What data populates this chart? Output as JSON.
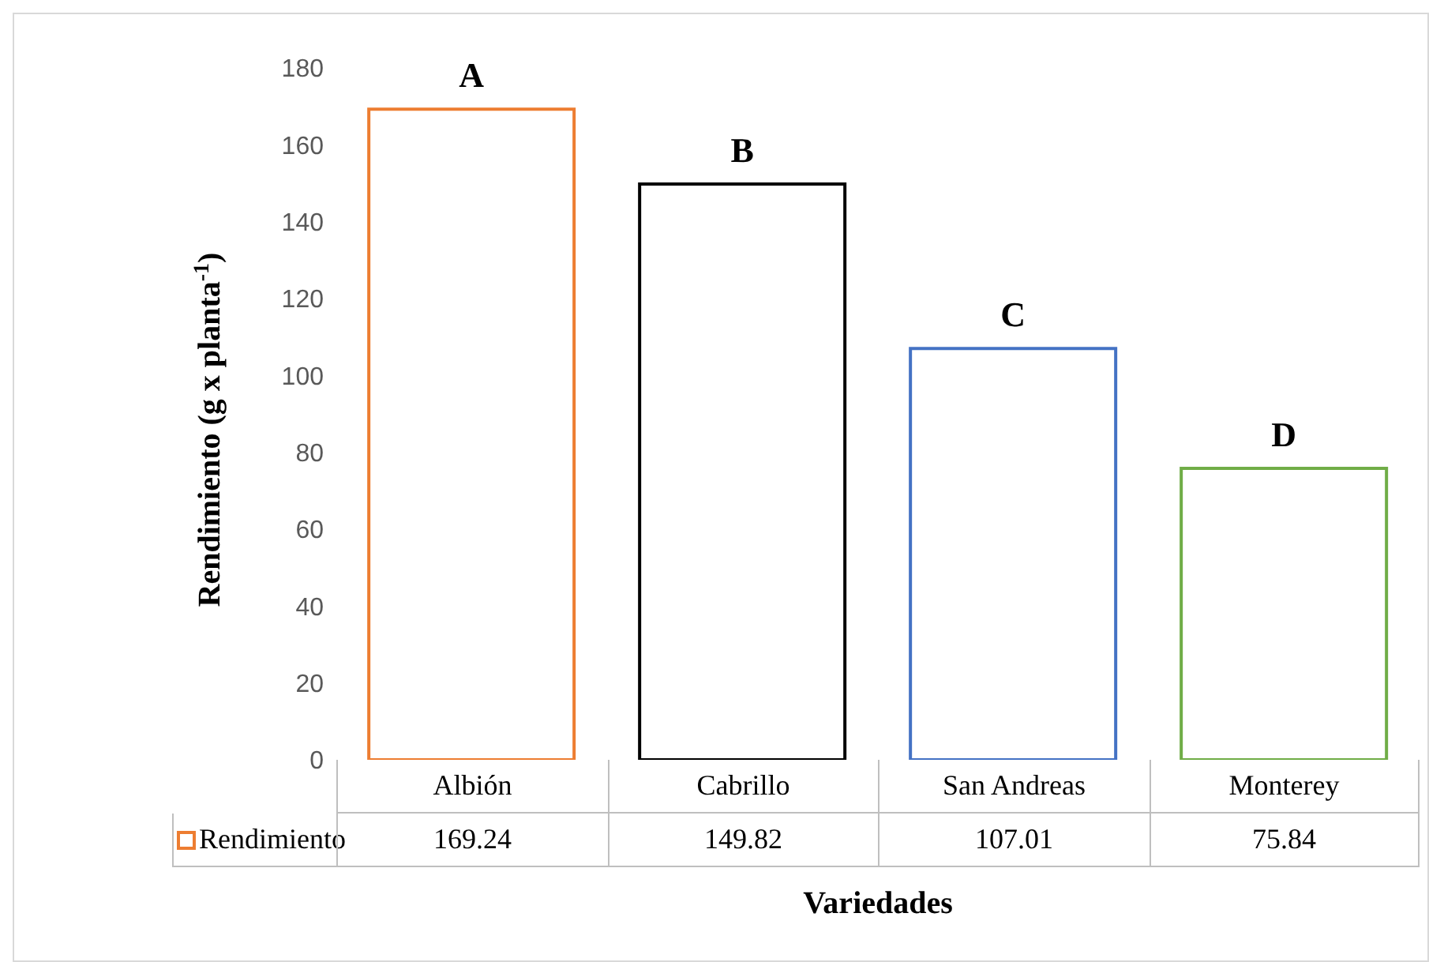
{
  "chart_data": {
    "type": "bar",
    "xlabel": "Variedades",
    "ylabel": "Rendimiento (g x planta$^{-1}$)",
    "categories": [
      "Albión",
      "Cabrillo",
      "San Andreas",
      "Monterey"
    ],
    "series": [
      {
        "name": "Rendimiento",
        "color": "#ed7d31",
        "colors": [
          "#ed7d31",
          "#000000",
          "#4472c4",
          "#70ad47"
        ],
        "values": [
          169.24,
          149.82,
          107.01,
          75.84
        ]
      }
    ],
    "ylim": [
      0,
      180
    ],
    "yticks": [
      0,
      20,
      40,
      60,
      80,
      100,
      120,
      140,
      160,
      180
    ],
    "grid": false,
    "data_labels": true,
    "annotations": [
      {
        "text": "A",
        "x": "Albión",
        "y": 169.24
      },
      {
        "text": "B",
        "x": "Cabrillo",
        "y": 149.82
      },
      {
        "text": "C",
        "x": "San Andreas",
        "y": 107.01
      },
      {
        "text": "D",
        "x": "Monterey",
        "y": 75.84
      }
    ]
  }
}
